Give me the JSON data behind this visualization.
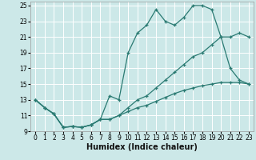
{
  "xlabel": "Humidex (Indice chaleur)",
  "bg_color": "#cce8e8",
  "grid_color": "#ffffff",
  "line_color": "#2a7a72",
  "xlim": [
    -0.5,
    23.5
  ],
  "ylim": [
    9,
    25.5
  ],
  "xticks": [
    0,
    1,
    2,
    3,
    4,
    5,
    6,
    7,
    8,
    9,
    10,
    11,
    12,
    13,
    14,
    15,
    16,
    17,
    18,
    19,
    20,
    21,
    22,
    23
  ],
  "yticks": [
    9,
    11,
    13,
    15,
    17,
    19,
    21,
    23,
    25
  ],
  "line1_x": [
    0,
    1,
    2,
    3,
    4,
    5,
    6,
    7,
    8,
    9,
    10,
    11,
    12,
    13,
    14,
    15,
    16,
    17,
    18,
    19,
    20,
    21,
    22,
    23
  ],
  "line1_y": [
    13,
    12,
    11.2,
    9.5,
    9.6,
    9.5,
    9.8,
    10.5,
    13.5,
    13,
    19,
    21.5,
    22.5,
    24.5,
    23,
    22.5,
    23.5,
    25,
    25,
    24.5,
    21,
    17,
    15.5,
    15
  ],
  "line2_x": [
    0,
    1,
    2,
    3,
    4,
    5,
    6,
    7,
    8,
    9,
    10,
    11,
    12,
    13,
    14,
    15,
    16,
    17,
    18,
    19,
    20,
    21,
    22,
    23
  ],
  "line2_y": [
    13,
    12,
    11.2,
    9.5,
    9.6,
    9.5,
    9.8,
    10.5,
    10.5,
    11,
    12,
    13,
    13.5,
    14.5,
    15.5,
    16.5,
    17.5,
    18.5,
    19,
    20,
    21,
    21,
    21.5,
    21
  ],
  "line3_x": [
    0,
    1,
    2,
    3,
    4,
    5,
    6,
    7,
    8,
    9,
    10,
    11,
    12,
    13,
    14,
    15,
    16,
    17,
    18,
    19,
    20,
    21,
    22,
    23
  ],
  "line3_y": [
    13,
    12,
    11.2,
    9.5,
    9.6,
    9.5,
    9.8,
    10.5,
    10.5,
    11,
    11.5,
    12,
    12.3,
    12.8,
    13.3,
    13.8,
    14.2,
    14.5,
    14.8,
    15,
    15.2,
    15.2,
    15.2,
    15
  ],
  "marker": "+",
  "markersize": 3,
  "linewidth": 0.9,
  "xlabel_fontsize": 7,
  "tick_fontsize": 5.5
}
